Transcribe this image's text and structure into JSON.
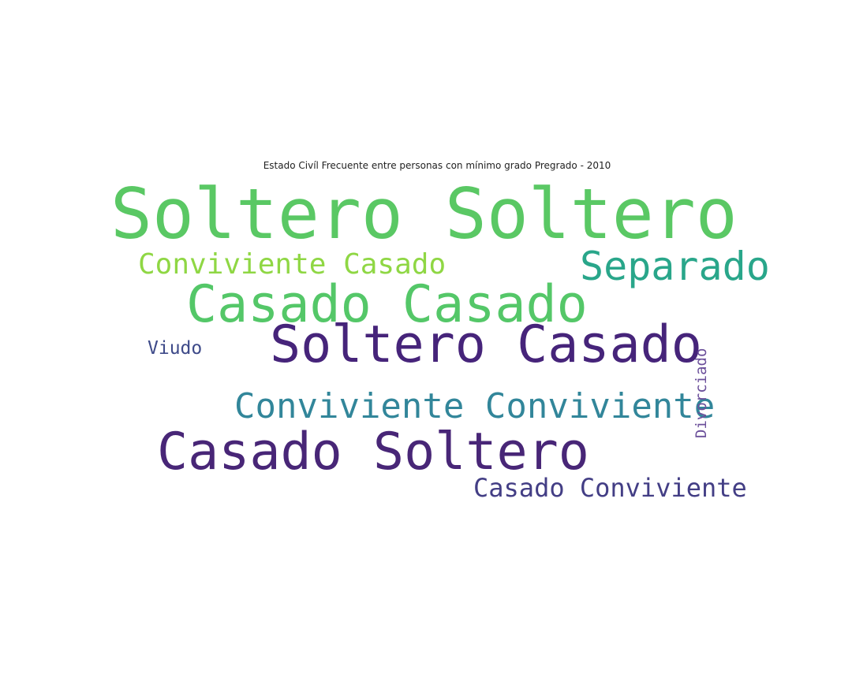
{
  "chart_data": {
    "type": "wordcloud",
    "title": "Estado Civíl Frecuente entre personas con mínimo grado Pregrado - 2010",
    "words": [
      {
        "text": "Soltero Soltero",
        "color": "#5ac864",
        "orientation": "horizontal"
      },
      {
        "text": "Conviviente Casado",
        "color": "#8fd744",
        "orientation": "horizontal"
      },
      {
        "text": "Separado",
        "color": "#29a68a",
        "orientation": "horizontal"
      },
      {
        "text": "Casado Casado",
        "color": "#54c768",
        "orientation": "horizontal"
      },
      {
        "text": "Viudo",
        "color": "#3e4a89",
        "orientation": "horizontal"
      },
      {
        "text": "Soltero Casado",
        "color": "#46247a",
        "orientation": "horizontal"
      },
      {
        "text": "Conviviente Conviviente",
        "color": "#32869a",
        "orientation": "horizontal"
      },
      {
        "text": "Casado Soltero",
        "color": "#482677",
        "orientation": "horizontal"
      },
      {
        "text": "Casado Conviviente",
        "color": "#433e85",
        "orientation": "horizontal"
      },
      {
        "text": "Divorciado",
        "color": "#6b4f9a",
        "orientation": "vertical"
      }
    ]
  }
}
